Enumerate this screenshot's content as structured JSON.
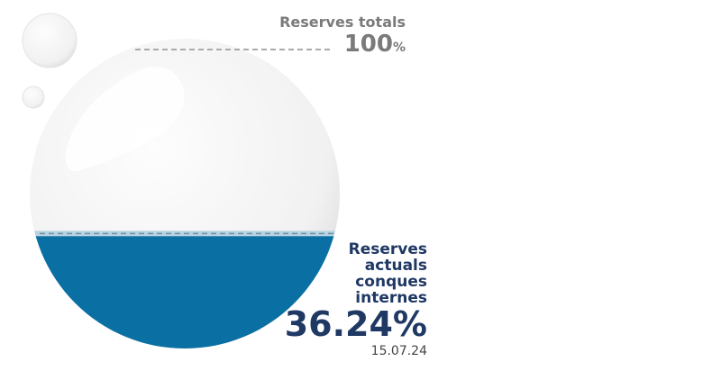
{
  "chart_data": {
    "type": "gauge",
    "total_label": "Reserves totals",
    "total_value": 100,
    "unit": "%",
    "current_label": "Reserves actuals conques internes",
    "current_value": 36.24,
    "date": "15.07.24",
    "color": "#0a6fa3"
  }
}
